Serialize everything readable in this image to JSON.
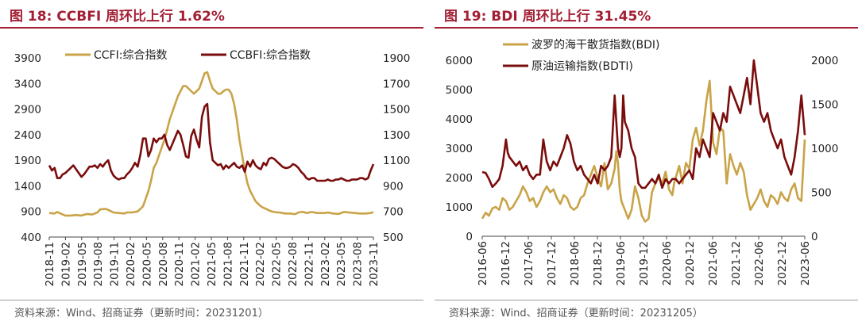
{
  "colors": {
    "accent": "#a31f34",
    "gold": "#c9a347",
    "maroon": "#7a0c0c",
    "axis": "#444444"
  },
  "panels": [
    {
      "title": "图 18:  CCBFI 周环比上行 1.62%",
      "source": "资料来源：Wind、招商证券（更新时间：20231201）",
      "chart_data": {
        "type": "line",
        "x_tick_labels": [
          "2018-11",
          "2019-02",
          "2019-05",
          "2019-08",
          "2019-11",
          "2020-02",
          "2020-05",
          "2020-08",
          "2020-11",
          "2021-02",
          "2021-05",
          "2021-08",
          "2021-11",
          "2022-02",
          "2022-05",
          "2022-08",
          "2022-11",
          "2023-02",
          "2023-05",
          "2023-08",
          "2023-11"
        ],
        "y_left": {
          "lim": [
            400,
            3900
          ],
          "ticks": [
            400,
            900,
            1400,
            1900,
            2400,
            2900,
            3400,
            3900
          ]
        },
        "y_right": {
          "lim": [
            500,
            1900
          ],
          "ticks": [
            500,
            700,
            900,
            1100,
            1300,
            1500,
            1700,
            1900
          ]
        },
        "legend": [
          "CCFI:综合指数",
          "CCBFI:综合指数"
        ],
        "series": [
          {
            "name": "CCFI:综合指数",
            "axis": "left",
            "color": "#c9a347",
            "x": [
              0,
              2,
              3,
              5,
              6,
              8,
              10,
              12,
              14,
              16,
              18,
              19,
              21,
              22,
              24,
              26,
              28,
              29,
              31,
              33,
              35,
              37,
              38,
              39,
              40,
              41,
              42,
              43,
              44,
              45,
              46,
              47,
              48,
              49,
              50,
              51,
              52,
              53,
              54,
              55,
              56,
              57,
              58,
              59,
              60,
              61,
              62,
              63,
              64,
              65,
              66,
              67,
              68,
              69,
              70,
              71,
              72,
              73,
              74,
              75,
              76,
              77,
              78,
              79,
              80,
              81,
              82,
              83,
              84,
              85,
              86,
              87,
              88,
              89,
              90,
              91,
              92,
              93,
              94,
              95,
              96,
              97,
              98,
              99,
              100,
              101,
              102,
              103,
              104,
              105,
              106,
              108,
              110,
              112,
              114,
              116,
              118,
              120,
              121
            ],
            "y": [
              870,
              860,
              890,
              840,
              820,
              820,
              830,
              820,
              850,
              840,
              880,
              940,
              950,
              930,
              880,
              870,
              860,
              880,
              880,
              900,
              1000,
              1300,
              1500,
              1750,
              1850,
              2000,
              2150,
              2300,
              2500,
              2700,
              2850,
              3000,
              3150,
              3250,
              3350,
              3350,
              3300,
              3250,
              3200,
              3250,
              3300,
              3450,
              3600,
              3620,
              3450,
              3300,
              3250,
              3200,
              3200,
              3250,
              3280,
              3280,
              3200,
              3000,
              2700,
              2300,
              2000,
              1700,
              1450,
              1300,
              1200,
              1100,
              1050,
              1000,
              970,
              950,
              920,
              900,
              890,
              880,
              880,
              870,
              860,
              860,
              860,
              850,
              850,
              880,
              890,
              890,
              870,
              880,
              890,
              880,
              870,
              870,
              870,
              870,
              880,
              870,
              860,
              850,
              890,
              880,
              870,
              860,
              860,
              870,
              890
            ]
          },
          {
            "name": "CCBFI:综合指数",
            "axis": "right",
            "color": "#7a0c0c",
            "x": [
              0,
              1,
              2,
              3,
              4,
              5,
              6,
              7,
              8,
              9,
              10,
              11,
              12,
              13,
              14,
              15,
              16,
              17,
              18,
              19,
              20,
              21,
              22,
              23,
              24,
              25,
              26,
              27,
              28,
              29,
              30,
              31,
              32,
              33,
              34,
              35,
              36,
              37,
              38,
              39,
              40,
              41,
              42,
              43,
              44,
              45,
              46,
              47,
              48,
              49,
              50,
              51,
              52,
              53,
              54,
              55,
              56,
              57,
              58,
              59,
              60,
              61,
              62,
              63,
              64,
              65,
              66,
              67,
              68,
              69,
              70,
              71,
              72,
              73,
              74,
              75,
              76,
              77,
              78,
              79,
              80,
              81,
              82,
              83,
              84,
              85,
              86,
              87,
              88,
              89,
              90,
              91,
              92,
              93,
              94,
              95,
              96,
              97,
              98,
              99,
              100,
              101,
              102,
              103,
              104,
              105,
              106,
              107,
              108,
              109,
              110,
              111,
              112,
              113,
              114,
              115,
              116,
              117,
              118,
              119,
              120,
              121
            ],
            "y": [
              1060,
              1020,
              1040,
              960,
              960,
              990,
              1000,
              1020,
              1040,
              1060,
              1030,
              1000,
              970,
              990,
              1020,
              1050,
              1050,
              1060,
              1040,
              1070,
              1050,
              1080,
              1100,
              1020,
              980,
              960,
              950,
              960,
              960,
              990,
              1010,
              1040,
              1080,
              1050,
              1140,
              1270,
              1270,
              1130,
              1180,
              1270,
              1240,
              1270,
              1270,
              1300,
              1220,
              1180,
              1230,
              1280,
              1330,
              1300,
              1220,
              1130,
              1120,
              1290,
              1340,
              1260,
              1200,
              1440,
              1520,
              1540,
              1240,
              1100,
              1080,
              1060,
              1070,
              1030,
              1060,
              1040,
              1060,
              1080,
              1050,
              1040,
              1060,
              1010,
              1090,
              1050,
              1100,
              1060,
              1040,
              1030,
              1080,
              1060,
              1110,
              1120,
              1110,
              1090,
              1070,
              1050,
              1040,
              1040,
              1050,
              1070,
              1060,
              1040,
              1010,
              990,
              960,
              950,
              960,
              960,
              940,
              940,
              940,
              940,
              950,
              940,
              940,
              950,
              950,
              960,
              950,
              940,
              940,
              950,
              950,
              950,
              960,
              960,
              950,
              960,
              1020,
              1070
            ]
          }
        ]
      }
    },
    {
      "title": "图 19:  BDI 周环比上行 31.45%",
      "source": "资料来源：Wind、招商证券（更新时间：20231205）",
      "chart_data": {
        "type": "line",
        "x_tick_labels": [
          "2016-06",
          "2016-12",
          "2017-06",
          "2017-12",
          "2018-06",
          "2018-12",
          "2019-06",
          "2019-12",
          "2020-06",
          "2020-12",
          "2021-06",
          "2021-12",
          "2022-06",
          "2022-12",
          "2023-06"
        ],
        "y_left": {
          "lim": [
            0,
            6000
          ],
          "ticks": [
            0,
            1000,
            2000,
            3000,
            4000,
            5000,
            6000
          ]
        },
        "y_right": {
          "lim": [
            0,
            2000
          ],
          "ticks": [
            0,
            500,
            1000,
            1500,
            2000
          ]
        },
        "legend": [
          "波罗的海干散货指数(BDI)",
          "原油运输指数(BDTI)"
        ],
        "series": [
          {
            "name": "波罗的海干散货指数(BDI)",
            "axis": "left",
            "color": "#c9a347",
            "x": [
              0,
              2,
              4,
              6,
              8,
              10,
              12,
              14,
              16,
              18,
              20,
              22,
              24,
              26,
              28,
              30,
              32,
              34,
              36,
              38,
              40,
              42,
              44,
              46,
              48,
              50,
              52,
              54,
              56,
              58,
              60,
              62,
              64,
              66,
              68,
              70,
              72,
              74,
              76,
              78,
              79,
              80,
              81,
              82,
              84,
              86,
              88,
              90,
              92,
              94,
              96,
              98,
              100,
              102,
              104,
              106,
              108,
              110,
              112,
              113,
              114,
              116,
              118,
              120,
              122,
              124,
              126,
              128,
              130,
              132,
              134,
              136,
              138,
              140,
              142,
              144,
              146,
              148,
              150,
              152,
              154,
              156,
              158,
              160,
              162,
              164,
              166,
              168,
              170,
              172,
              174,
              176,
              178,
              180,
              182,
              184,
              186,
              188,
              190
            ],
            "y": [
              600,
              800,
              700,
              950,
              1000,
              900,
              1300,
              1200,
              900,
              1000,
              1200,
              1400,
              1700,
              1500,
              1200,
              1300,
              1000,
              1200,
              1500,
              1700,
              1500,
              1600,
              1300,
              1100,
              1400,
              1300,
              1000,
              900,
              1000,
              1300,
              1400,
              1800,
              2100,
              2400,
              2000,
              1700,
              2500,
              1600,
              1800,
              2300,
              2900,
              2500,
              1600,
              1200,
              900,
              600,
              900,
              1700,
              1300,
              700,
              500,
              600,
              1500,
              1800,
              2000,
              1800,
              2200,
              1600,
              1400,
              1800,
              2000,
              2400,
              1800,
              2500,
              2300,
              3300,
              3700,
              3100,
              3600,
              4600,
              5300,
              3200,
              2800,
              3700,
              3600,
              1800,
              2800,
              2400,
              2100,
              2500,
              2200,
              1400,
              900,
              1100,
              1300,
              1600,
              1200,
              1000,
              1400,
              1300,
              1100,
              1500,
              1300,
              1200,
              1600,
              1800,
              1300,
              1200,
              3300
            ]
          },
          {
            "name": "原油运输指数(BDTI)",
            "axis": "right",
            "color": "#7a0c0c",
            "x": [
              0,
              2,
              4,
              6,
              8,
              10,
              12,
              14,
              15,
              16,
              18,
              20,
              22,
              24,
              26,
              28,
              30,
              32,
              34,
              36,
              38,
              40,
              42,
              44,
              46,
              48,
              50,
              52,
              54,
              56,
              58,
              60,
              62,
              64,
              66,
              68,
              70,
              72,
              74,
              76,
              78,
              80,
              81,
              82,
              83,
              84,
              86,
              88,
              90,
              92,
              94,
              96,
              98,
              100,
              102,
              104,
              106,
              108,
              110,
              112,
              114,
              116,
              118,
              120,
              122,
              124,
              126,
              128,
              130,
              132,
              134,
              136,
              138,
              140,
              142,
              144,
              146,
              148,
              150,
              152,
              154,
              156,
              158,
              160,
              162,
              164,
              166,
              168,
              170,
              172,
              174,
              176,
              178,
              180,
              182,
              184,
              186,
              188,
              190
            ],
            "y": [
              730,
              720,
              650,
              560,
              600,
              650,
              800,
              1100,
              950,
              900,
              850,
              800,
              850,
              750,
              800,
              700,
              650,
              700,
              700,
              1100,
              850,
              750,
              850,
              800,
              900,
              1000,
              1150,
              1050,
              850,
              750,
              800,
              700,
              650,
              600,
              700,
              600,
              800,
              750,
              800,
              900,
              1600,
              1000,
              900,
              1000,
              1600,
              1300,
              1200,
              1000,
              900,
              600,
              550,
              550,
              600,
              650,
              600,
              700,
              550,
              650,
              600,
              650,
              650,
              600,
              650,
              700,
              750,
              650,
              1000,
              900,
              1100,
              1000,
              900,
              1400,
              1300,
              1200,
              1400,
              1300,
              1700,
              1600,
              1500,
              1400,
              1600,
              1800,
              1500,
              2000,
              1700,
              1400,
              1300,
              1400,
              1200,
              1100,
              1000,
              1100,
              900,
              800,
              700,
              900,
              1200,
              1600,
              1150
            ]
          }
        ]
      }
    }
  ]
}
